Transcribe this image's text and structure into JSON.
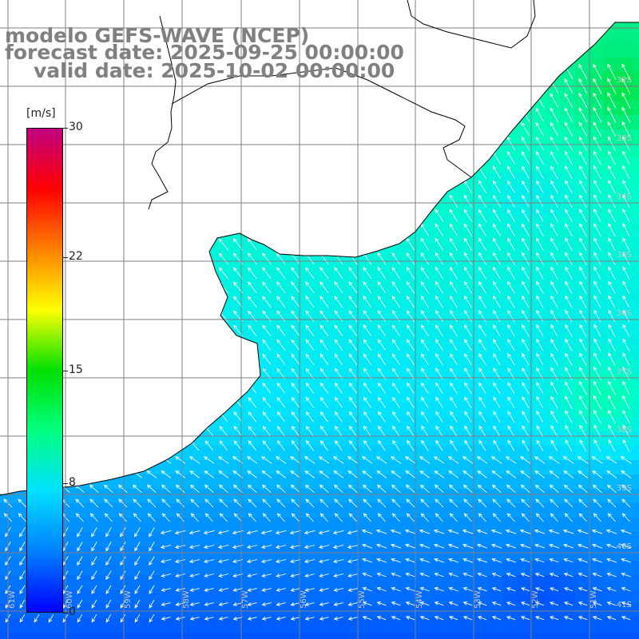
{
  "titles": {
    "model": "modelo GEFS-WAVE (NCEP)",
    "forecast": "forecast date: 2025-09-25 00:00:00",
    "valid": "valid date: 2025-10-02 00:00:00"
  },
  "colorbar": {
    "unit": "[m/s]",
    "ticks": [
      {
        "label": "30",
        "value": 30
      },
      {
        "label": "22",
        "value": 22
      },
      {
        "label": "15",
        "value": 15
      },
      {
        "label": "8",
        "value": 8
      },
      {
        "label": "0",
        "value": 0
      }
    ],
    "stops": [
      "#0000ff",
      "#0080ff",
      "#00e0ff",
      "#00ff80",
      "#00e000",
      "#ffff00",
      "#ff8000",
      "#ff0000",
      "#c00080"
    ]
  },
  "lat_labels": [
    "32S",
    "33S",
    "34S",
    "35S",
    "36S",
    "37S",
    "38S",
    "39S",
    "40S",
    "41S"
  ],
  "lon_labels": [
    "61W",
    "60W",
    "59W",
    "58W",
    "57W",
    "56W",
    "55W",
    "54W",
    "53W",
    "52W",
    "51W"
  ],
  "colors": {
    "land": "#ffffff",
    "grid": "#7f7f7f",
    "coast": "#000000",
    "arrow": "#ffffff",
    "title": "#808080"
  }
}
